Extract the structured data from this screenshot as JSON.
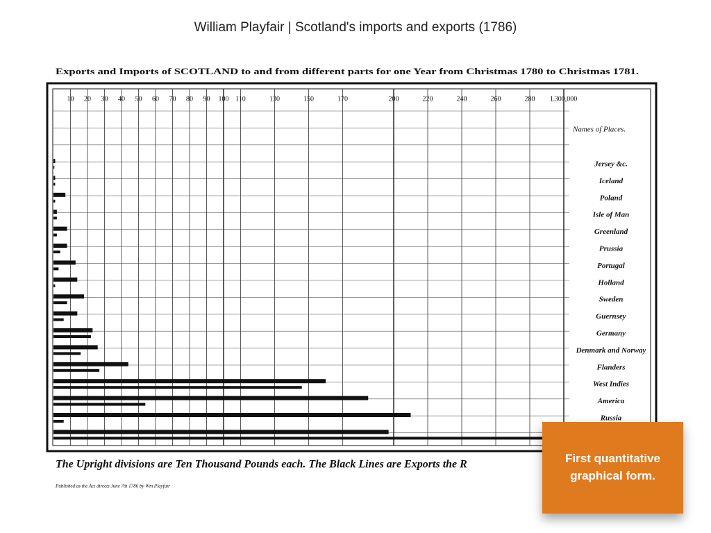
{
  "slide_title": "William Playfair | Scotland's imports and exports (1786)",
  "callout": "First quantitative graphical form.",
  "chart_data": {
    "type": "bar",
    "orientation": "horizontal",
    "title": "Exports and Imports of SCOTLAND to and from different parts for one Year from Christmas 1780 to Christmas 1781.",
    "column_header": "Names of Places.",
    "footnote": "The Upright divisions are Ten Thousand Pounds each. The Black Lines are Exports the R",
    "publisher_note": "Published as the Act directs June 7th 1786 by Wm Playfair",
    "categories": [
      "Jersey &c.",
      "Iceland",
      "Poland",
      "Isle of Man",
      "Greenland",
      "Prussia",
      "Portugal",
      "Holland",
      "Sweden",
      "Guernsey",
      "Germany",
      "Denmark and Norway",
      "Flanders",
      "West Indies",
      "America",
      "Russia",
      null
    ],
    "series": [
      {
        "color": "#111111",
        "values": [
          1,
          1,
          7,
          2,
          8,
          8,
          13,
          14,
          18,
          14,
          23,
          26,
          44,
          160,
          185,
          210,
          197
        ]
      },
      {
        "color": "#111111",
        "values": [
          0.5,
          1,
          1,
          2,
          2,
          4,
          3,
          1,
          8,
          6,
          22,
          16,
          27,
          146,
          54,
          6,
          290
        ]
      }
    ],
    "xlim": [
      0,
      300
    ],
    "xticks": [
      10,
      20,
      30,
      40,
      50,
      60,
      70,
      80,
      90,
      100,
      110,
      130,
      150,
      170,
      200,
      220,
      240,
      260,
      280,
      {
        "value": 300,
        "label": "L300,000"
      }
    ],
    "grid": true
  }
}
